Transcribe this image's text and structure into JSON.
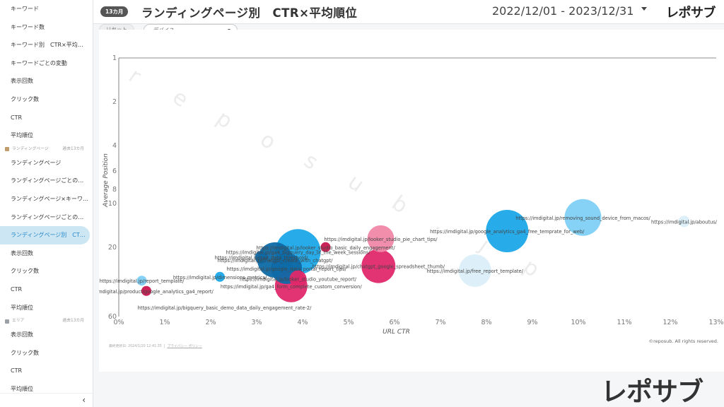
{
  "sidebar": {
    "groups": [
      {
        "items": [
          "キーワード",
          "キーワード数",
          "キーワード別　CTR×平均順位",
          "キーワードごとの変動",
          "表示回数",
          "クリック数",
          "CTR",
          "平均順位"
        ]
      },
      {
        "section": "ランディングページ",
        "period": "過去13カ月",
        "items": [
          "ランディングページ",
          "ランディングページごとの変動",
          "ランディングページ×キーワード",
          "ランディングページごとの変動",
          "ランディングページ別　CTR×平均順位",
          "表示回数",
          "クリック数",
          "CTR",
          "平均順位"
        ]
      },
      {
        "section": "エリア",
        "period": "過去13カ月",
        "items": [
          "表示回数",
          "クリック数",
          "CTR",
          "平均順位"
        ]
      }
    ],
    "active_label": "ランディングページ別　CTR×平均順位",
    "collapse_label": "‹"
  },
  "header": {
    "period_badge": "13カ月",
    "title": "ランディングページ別　CTR×平均順位",
    "date_range": "2022/12/01 - 2023/12/31",
    "logo": "レポサブ"
  },
  "filters": {
    "reset_label": "リセット",
    "device_label": "デバイス"
  },
  "footer": {
    "updated": "最終更新日: 2024/1/20 12:41:35",
    "privacy": "プライバシー ポリシー",
    "copyright": "©reposub. All rights reserved."
  },
  "watermark": "reposub.jp",
  "brand_logo": "レポサブ",
  "colors": {
    "accent": "#1f86c8",
    "light_blue": "#7fd0f5",
    "sky": "#1ba7e8",
    "pale": "#dbeff9",
    "navy": "#0e6aa6",
    "pink": "#e0286a",
    "light_pink": "#ef88a8",
    "crimson": "#c8174f"
  },
  "chart_data": {
    "type": "scatter",
    "xlabel": "URL CTR",
    "ylabel": "Average Position",
    "x_ticks": [
      "0%",
      "1%",
      "2%",
      "3%",
      "4%",
      "5%",
      "6%",
      "7%",
      "8%",
      "9%",
      "10%",
      "11%",
      "12%",
      "13%"
    ],
    "y_ticks": [
      "1",
      "2",
      "4",
      "6",
      "8",
      "10",
      "20",
      "60"
    ],
    "y_scale": "log-reversed",
    "points": [
      {
        "x": 10.1,
        "y": 12.5,
        "size": 26,
        "color": "#7fd0f5",
        "label": "https://imdigital.jp/removing_sound_device_from_macos/"
      },
      {
        "x": 12.3,
        "y": 13.3,
        "size": 8,
        "color": "#dbeff9",
        "label": "https://imdigital.jp/aboutus/"
      },
      {
        "x": 8.45,
        "y": 15.5,
        "size": 30,
        "color": "#1ba7e8",
        "label": "https://imdigital.jp/google_analytics_ga4_free_temprate_for_web/"
      },
      {
        "x": 7.75,
        "y": 29,
        "size": 23,
        "color": "#dbeff9",
        "label": "https://imdigital.jp/free_report_template/"
      },
      {
        "x": 5.7,
        "y": 17.5,
        "size": 19,
        "color": "#ef88a8",
        "label": "https://imdigital.jp/looker_studio_pie_chart_tips/"
      },
      {
        "x": 5.65,
        "y": 27,
        "size": 24,
        "color": "#e0286a",
        "label": "https://imdigital.jp/chatgpt_google_spreadsheet_thumb/"
      },
      {
        "x": 4.5,
        "y": 20,
        "size": 7,
        "color": "#c8174f",
        "label": "https://imdigital.jp/looker_studio_basic_daily_engagement/"
      },
      {
        "x": 3.9,
        "y": 21.5,
        "size": 32,
        "color": "#1ba7e8",
        "label": "https://imdigital.jp/ga4_bigquery_day_of_the_week_sessions/"
      },
      {
        "x": 3.4,
        "y": 24.5,
        "size": 25,
        "color": "#0e6aa6",
        "label": "https://imdigital.jp/chatgpt_create_with_chatgpt/"
      },
      {
        "x": 3.65,
        "y": 28,
        "size": 22,
        "color": "#0e6aa6",
        "label": "https://imdigital.jp/google_data_portal_report_tips/"
      },
      {
        "x": 3.1,
        "y": 23.5,
        "size": 9,
        "color": "#0e6aa6",
        "label": "https://imdigital.jp/ga4_data_threshold/"
      },
      {
        "x": 3.75,
        "y": 37,
        "size": 23,
        "color": "#e0286a",
        "label": "https://imdigital.jp/ga4_form_complete_custom_conversion/"
      },
      {
        "x": 3.9,
        "y": 33,
        "size": 12,
        "color": "#e0286a",
        "label": "https://imdigital.jp/looker_studio_youtube_report/"
      },
      {
        "x": 2.2,
        "y": 32,
        "size": 7,
        "color": "#1ba7e8",
        "label": "https://imdigital.jp/dimensions_metrics/"
      },
      {
        "x": 0.5,
        "y": 34,
        "size": 7,
        "color": "#7fd0f5",
        "label": "https://imdigital.jp/report_template/"
      },
      {
        "x": 0.6,
        "y": 40,
        "size": 7,
        "color": "#c8174f",
        "label": "https://imdigital.jp/product/google_analytics_ga4_report/"
      },
      {
        "x": 2.3,
        "y": 52,
        "size": 0,
        "color": "#0e6aa6",
        "label": "https://imdigital.jp/bigquery_basic_demo_data_daily_engagement_rate-2/"
      }
    ]
  }
}
